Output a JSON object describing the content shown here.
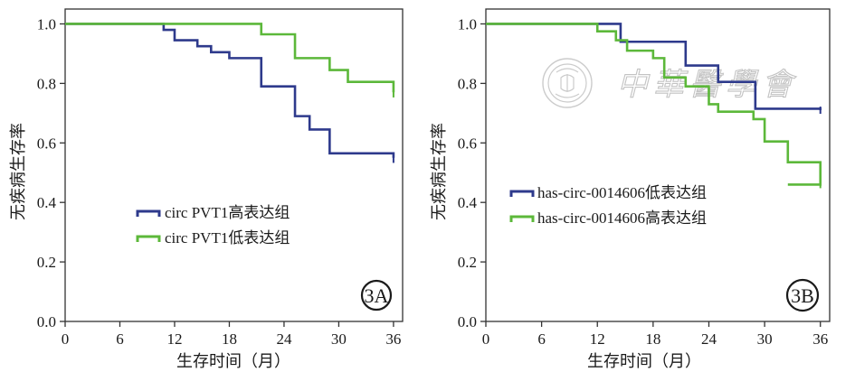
{
  "xlabel": "生存时间（月）",
  "ylabel": "无疾病生存率",
  "x_ticks": [
    "0",
    "6",
    "12",
    "18",
    "24",
    "30",
    "36"
  ],
  "y_ticks": [
    "0.0",
    "0.2",
    "0.4",
    "0.6",
    "0.8",
    "1.0"
  ],
  "watermark": {
    "text": "中華醫學會"
  },
  "colors": {
    "navy": "#2e3a8c",
    "green": "#5cb83a",
    "axis": "#333333"
  },
  "chart_data": [
    {
      "type": "line",
      "step": "post",
      "panel_label": "3A",
      "xlim": [
        0,
        37
      ],
      "ylim": [
        0,
        1.05
      ],
      "legend_position": "center",
      "series": [
        {
          "name": "circ PVT1高表达组",
          "color": "#2e3a8c",
          "x": [
            0,
            10.8,
            12,
            14.5,
            16,
            18,
            21.5,
            25.2,
            26.8,
            29,
            36
          ],
          "y": [
            1.0,
            0.98,
            0.945,
            0.925,
            0.905,
            0.885,
            0.79,
            0.69,
            0.645,
            0.565,
            0.55
          ],
          "censor_x": [
            36
          ],
          "censor_y": [
            0.545
          ]
        },
        {
          "name": "circ PVT1低表达组",
          "color": "#5cb83a",
          "x": [
            0,
            21.5,
            25.2,
            29,
            31,
            36
          ],
          "y": [
            1.0,
            0.965,
            0.885,
            0.845,
            0.805,
            0.77
          ],
          "censor_x": [
            36
          ],
          "censor_y": [
            0.765
          ]
        }
      ]
    },
    {
      "type": "line",
      "step": "post",
      "panel_label": "3B",
      "xlim": [
        0,
        37
      ],
      "ylim": [
        0,
        1.05
      ],
      "legend_position": "lower-left",
      "series": [
        {
          "name": "has-circ-0014606低表达组",
          "color": "#2e3a8c",
          "x": [
            0,
            14.5,
            21.5,
            25,
            29,
            36
          ],
          "y": [
            1.0,
            0.94,
            0.86,
            0.805,
            0.715,
            0.71
          ],
          "censor_x": [
            36
          ],
          "censor_y": [
            0.71
          ]
        },
        {
          "name": "has-circ-0014606高表达组",
          "color": "#5cb83a",
          "x": [
            0,
            12,
            14,
            15.2,
            18,
            19.2,
            21.5,
            24,
            25,
            28.8,
            30,
            32.5,
            36
          ],
          "y": [
            1.0,
            0.975,
            0.945,
            0.91,
            0.885,
            0.82,
            0.79,
            0.73,
            0.705,
            0.68,
            0.605,
            0.535,
            0.505
          ],
          "extra_last_x": [
            32.5,
            36
          ],
          "extra_last_y": [
            0.46,
            0.46
          ],
          "censor_x": [
            36
          ],
          "censor_y": [
            0.46
          ]
        }
      ]
    }
  ]
}
